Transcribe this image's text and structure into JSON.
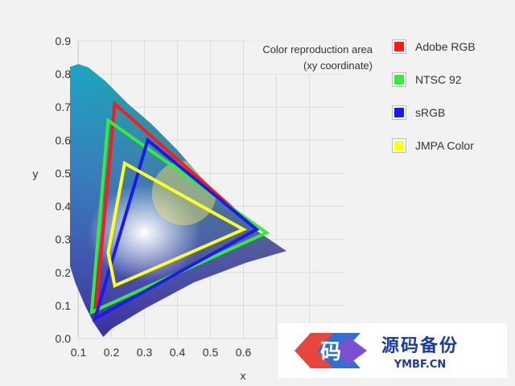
{
  "chart_data": {
    "type": "line",
    "title": "",
    "annotation": [
      "Color reproduction area",
      "(xy coordinate)"
    ],
    "xlabel": "x",
    "ylabel": "y",
    "xlim": [
      0.0,
      0.8
    ],
    "ylim": [
      0.0,
      0.9
    ],
    "x_ticks": [
      "0.1",
      "0.2",
      "0.3",
      "0.4",
      "0.5",
      "0.6"
    ],
    "y_ticks": [
      "0.0",
      "0.1",
      "0.2",
      "0.3",
      "0.4",
      "0.5",
      "0.6",
      "0.7",
      "0.8",
      "0.9"
    ],
    "grid": true,
    "legend_position": "right",
    "series": [
      {
        "name": "Adobe RGB",
        "color": "#ff1a1a",
        "points": [
          [
            0.21,
            0.71
          ],
          [
            0.64,
            0.33
          ],
          [
            0.15,
            0.06
          ]
        ]
      },
      {
        "name": "NTSC 92",
        "color": "#33ee33",
        "points": [
          [
            0.19,
            0.66
          ],
          [
            0.67,
            0.32
          ],
          [
            0.14,
            0.08
          ]
        ]
      },
      {
        "name": "sRGB",
        "color": "#1a1aee",
        "points": [
          [
            0.31,
            0.6
          ],
          [
            0.64,
            0.33
          ],
          [
            0.15,
            0.06
          ]
        ]
      },
      {
        "name": "JMPA Color",
        "color": "#ffff22",
        "points": [
          [
            0.24,
            0.53
          ],
          [
            0.6,
            0.33
          ],
          [
            0.21,
            0.16
          ],
          [
            0.19,
            0.26
          ]
        ]
      }
    ]
  },
  "watermark": {
    "main": "源码备份",
    "sub": "YMBF.CN",
    "logo_char": "码"
  }
}
